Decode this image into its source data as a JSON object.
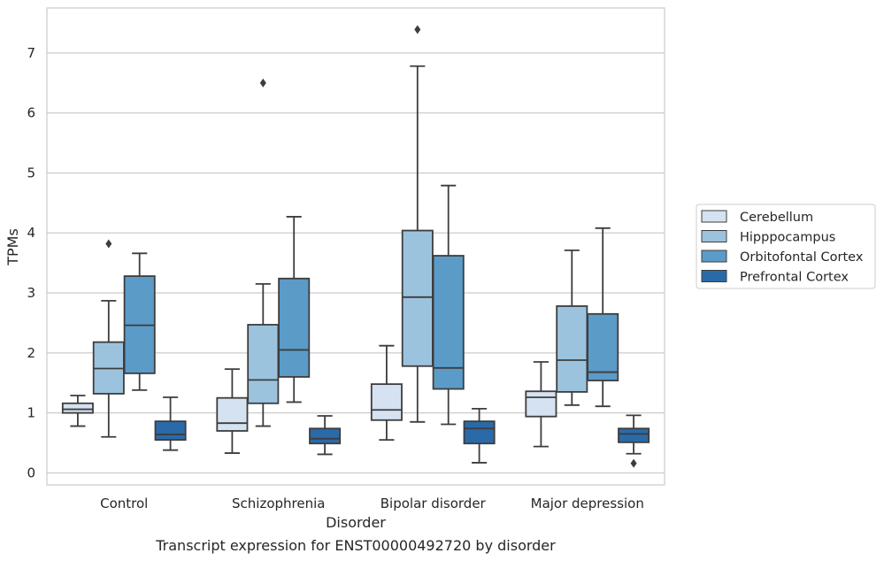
{
  "chart_data": {
    "type": "boxplot",
    "title": "Transcript expression for ENST00000492720 by disorder",
    "xlabel": "Disorder",
    "ylabel": "TPMs",
    "categories": [
      "Control",
      "Schizophrenia",
      "Bipolar disorder",
      "Major depression"
    ],
    "ylim": [
      -0.2,
      7.75
    ],
    "yticks": [
      0,
      1,
      2,
      3,
      4,
      5,
      6,
      7
    ],
    "grid": true,
    "legend_position": "right",
    "series": [
      {
        "name": "Cerebellum",
        "color": "#d4e2f1",
        "boxes": [
          {
            "whisker_low": 0.78,
            "q1": 1.0,
            "median": 1.06,
            "q3": 1.16,
            "whisker_high": 1.29,
            "outliers": []
          },
          {
            "whisker_low": 0.33,
            "q1": 0.7,
            "median": 0.83,
            "q3": 1.25,
            "whisker_high": 1.73,
            "outliers": []
          },
          {
            "whisker_low": 0.55,
            "q1": 0.88,
            "median": 1.05,
            "q3": 1.48,
            "whisker_high": 2.12,
            "outliers": []
          },
          {
            "whisker_low": 0.44,
            "q1": 0.94,
            "median": 1.26,
            "q3": 1.36,
            "whisker_high": 1.85,
            "outliers": []
          }
        ]
      },
      {
        "name": "Hipppocampus",
        "color": "#9cc3de",
        "boxes": [
          {
            "whisker_low": 0.6,
            "q1": 1.32,
            "median": 1.74,
            "q3": 2.18,
            "whisker_high": 2.87,
            "outliers": [
              3.82
            ]
          },
          {
            "whisker_low": 0.78,
            "q1": 1.16,
            "median": 1.55,
            "q3": 2.47,
            "whisker_high": 3.15,
            "outliers": [
              6.5
            ]
          },
          {
            "whisker_low": 0.85,
            "q1": 1.78,
            "median": 2.93,
            "q3": 4.04,
            "whisker_high": 6.78,
            "outliers": [
              7.39
            ]
          },
          {
            "whisker_low": 1.13,
            "q1": 1.35,
            "median": 1.88,
            "q3": 2.78,
            "whisker_high": 3.71,
            "outliers": []
          }
        ]
      },
      {
        "name": "Orbitofontal Cortex",
        "color": "#5b9bc8",
        "boxes": [
          {
            "whisker_low": 1.38,
            "q1": 1.66,
            "median": 2.46,
            "q3": 3.28,
            "whisker_high": 3.66,
            "outliers": []
          },
          {
            "whisker_low": 1.18,
            "q1": 1.6,
            "median": 2.05,
            "q3": 3.24,
            "whisker_high": 4.27,
            "outliers": []
          },
          {
            "whisker_low": 0.81,
            "q1": 1.4,
            "median": 1.75,
            "q3": 3.62,
            "whisker_high": 4.79,
            "outliers": []
          },
          {
            "whisker_low": 1.11,
            "q1": 1.54,
            "median": 1.68,
            "q3": 2.65,
            "whisker_high": 4.08,
            "outliers": []
          }
        ]
      },
      {
        "name": "Prefrontal Cortex",
        "color": "#2a6aa9",
        "boxes": [
          {
            "whisker_low": 0.38,
            "q1": 0.55,
            "median": 0.64,
            "q3": 0.86,
            "whisker_high": 1.26,
            "outliers": []
          },
          {
            "whisker_low": 0.31,
            "q1": 0.49,
            "median": 0.57,
            "q3": 0.74,
            "whisker_high": 0.95,
            "outliers": []
          },
          {
            "whisker_low": 0.17,
            "q1": 0.49,
            "median": 0.74,
            "q3": 0.86,
            "whisker_high": 1.07,
            "outliers": []
          },
          {
            "whisker_low": 0.32,
            "q1": 0.51,
            "median": 0.65,
            "q3": 0.74,
            "whisker_high": 0.96,
            "outliers": [
              0.16
            ]
          }
        ]
      }
    ]
  }
}
